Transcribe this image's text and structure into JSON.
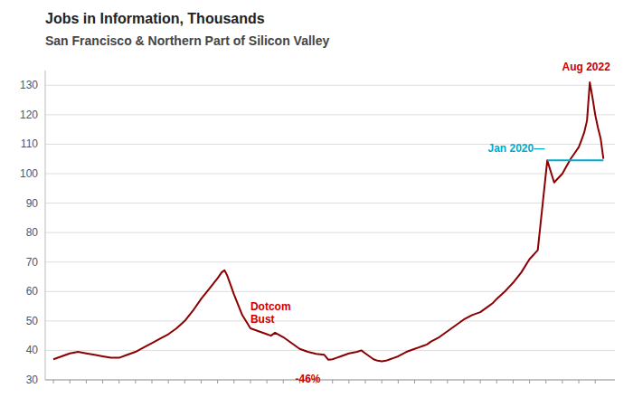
{
  "chart_data": {
    "type": "line",
    "title": "Jobs in Information, Thousands",
    "subtitle": "San Francisco & Northern Part of Silicon Valley",
    "color": "#8b0000",
    "x": [
      1990.0,
      1990.5,
      1991.0,
      1991.5,
      1992.0,
      1992.5,
      1993.0,
      1993.5,
      1994.0,
      1994.5,
      1995.0,
      1995.5,
      1996.0,
      1996.5,
      1997.0,
      1997.5,
      1998.0,
      1998.5,
      1999.0,
      1999.5,
      2000.0,
      2000.25,
      2000.42,
      2000.58,
      2001.0,
      2001.5,
      2002.0,
      2002.5,
      2003.0,
      2003.25,
      2003.5,
      2004.0,
      2004.5,
      2004.75,
      2005.0,
      2005.5,
      2006.0,
      2006.5,
      2006.75,
      2007.0,
      2007.25,
      2007.5,
      2008.0,
      2008.5,
      2008.75,
      2009.0,
      2009.25,
      2009.5,
      2009.75,
      2010.0,
      2010.25,
      2010.5,
      2010.75,
      2011.0,
      2011.5,
      2012.0,
      2012.25,
      2012.5,
      2012.75,
      2013.0,
      2013.5,
      2014.0,
      2014.5,
      2015.0,
      2015.5,
      2016.0,
      2016.5,
      2016.75,
      2017.0,
      2017.5,
      2017.75,
      2018.0,
      2018.5,
      2019.0,
      2019.5,
      2020.08,
      2020.5,
      2021.0,
      2021.5,
      2021.75,
      2022.0,
      2022.17,
      2022.33,
      2022.5,
      2022.67,
      2022.83,
      2023.0,
      2023.17,
      2023.33,
      2023.5
    ],
    "values": [
      37.0,
      38.0,
      39.0,
      39.5,
      39.0,
      38.5,
      38.0,
      37.5,
      37.5,
      38.5,
      39.5,
      41.0,
      42.5,
      44.0,
      45.5,
      47.5,
      50.0,
      53.5,
      57.5,
      61.0,
      64.5,
      66.5,
      67.2,
      65.5,
      59.0,
      52.0,
      47.5,
      46.5,
      45.5,
      45.0,
      46.0,
      44.5,
      42.5,
      41.5,
      40.5,
      39.5,
      38.8,
      38.5,
      36.8,
      37.0,
      37.5,
      38.0,
      39.0,
      39.5,
      40.0,
      39.0,
      38.0,
      37.0,
      36.5,
      36.3,
      36.5,
      37.0,
      37.5,
      38.0,
      39.5,
      40.5,
      41.0,
      41.5,
      42.0,
      43.0,
      44.5,
      46.5,
      48.5,
      50.5,
      52.0,
      53.0,
      55.0,
      56.0,
      57.5,
      60.0,
      61.5,
      63.0,
      66.5,
      71.0,
      74.0,
      104.5,
      97.0,
      100.0,
      105.0,
      107.0,
      109.0,
      111.5,
      114.0,
      118.0,
      131.0,
      126.0,
      120.0,
      115.5,
      112.0,
      105.0
    ],
    "xlim": [
      1989.5,
      2024.2
    ],
    "xticks": [
      1990,
      1991,
      1992,
      1993,
      1994,
      1995,
      1996,
      1997,
      1998,
      1999,
      2000,
      2001,
      2002,
      2003,
      2004,
      2005,
      2006,
      2007,
      2008,
      2009,
      2010,
      2011,
      2012,
      2013,
      2014,
      2015,
      2016,
      2017,
      2018,
      2019,
      2020,
      2021,
      2022,
      2023
    ],
    "ylim": [
      30,
      135
    ],
    "yticks": [
      30,
      40,
      50,
      60,
      70,
      80,
      90,
      100,
      110,
      120,
      130
    ],
    "tick_labels": "y",
    "grid": true,
    "reference_line": {
      "x": [
        2020.08,
        2023.5
      ],
      "y": 104.5,
      "color": "#00aacc"
    },
    "annotations": [
      {
        "text": "Jan 2020—",
        "x": 2020.08,
        "y": 104.5,
        "color": "#00aacc"
      },
      {
        "text": "Aug 2022",
        "x": 2022.67,
        "y": 133.5,
        "color": "#cc0000"
      },
      {
        "text": "Dotcom\nBust",
        "x": 2002.0,
        "y": 57,
        "color": "#cc0000"
      },
      {
        "text": "-46%",
        "x": 2005.5,
        "y": 32.5,
        "color": "#cc0000"
      }
    ]
  }
}
